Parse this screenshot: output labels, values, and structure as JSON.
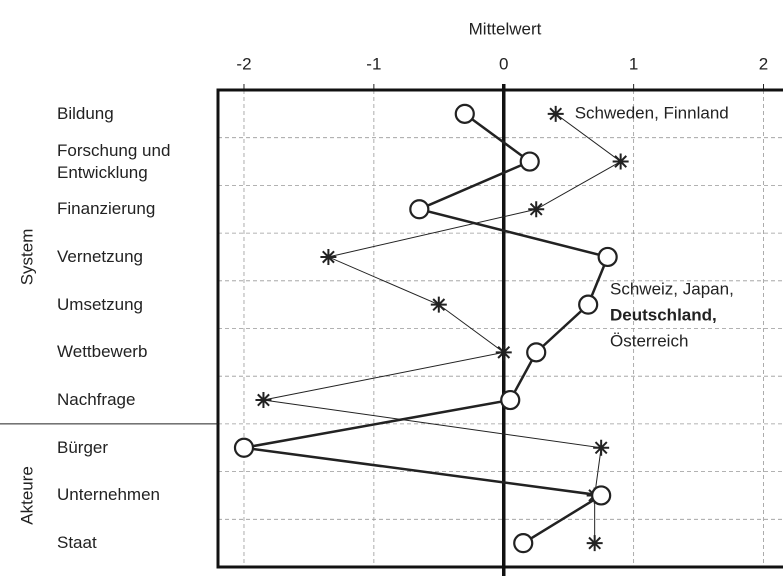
{
  "chart_data": {
    "type": "profile",
    "xlabel": "Mittelwert",
    "categories": [
      "Bildung",
      "Forschung und Entwicklung",
      "Finanzierung",
      "Vernetzung",
      "Umsetzung",
      "Wettbewerb",
      "Nachfrage",
      "Bürger",
      "Unternehmen",
      "Staat"
    ],
    "groups": [
      {
        "name": "System",
        "from": 0,
        "to": 6
      },
      {
        "name": "Akteure",
        "from": 7,
        "to": 9
      }
    ],
    "xlim": [
      -2.2,
      2.15
    ],
    "xticks": [
      -2,
      -1,
      0,
      1,
      2
    ],
    "grid": true,
    "series": [
      {
        "name": "Schweden, Finnland",
        "marker": "asterisk",
        "color": "#222",
        "values": [
          0.4,
          0.9,
          0.25,
          -1.35,
          -0.5,
          0.0,
          -1.85,
          0.75,
          0.7,
          0.7
        ]
      },
      {
        "name": [
          "Schweiz, Japan,",
          "Deutschland,",
          "Österreich"
        ],
        "bold": [
          false,
          true,
          false
        ],
        "marker": "circle",
        "color": "#222",
        "values": [
          -0.3,
          0.2,
          -0.65,
          0.8,
          0.65,
          0.25,
          0.05,
          -2.0,
          0.75,
          0.15
        ]
      }
    ]
  }
}
